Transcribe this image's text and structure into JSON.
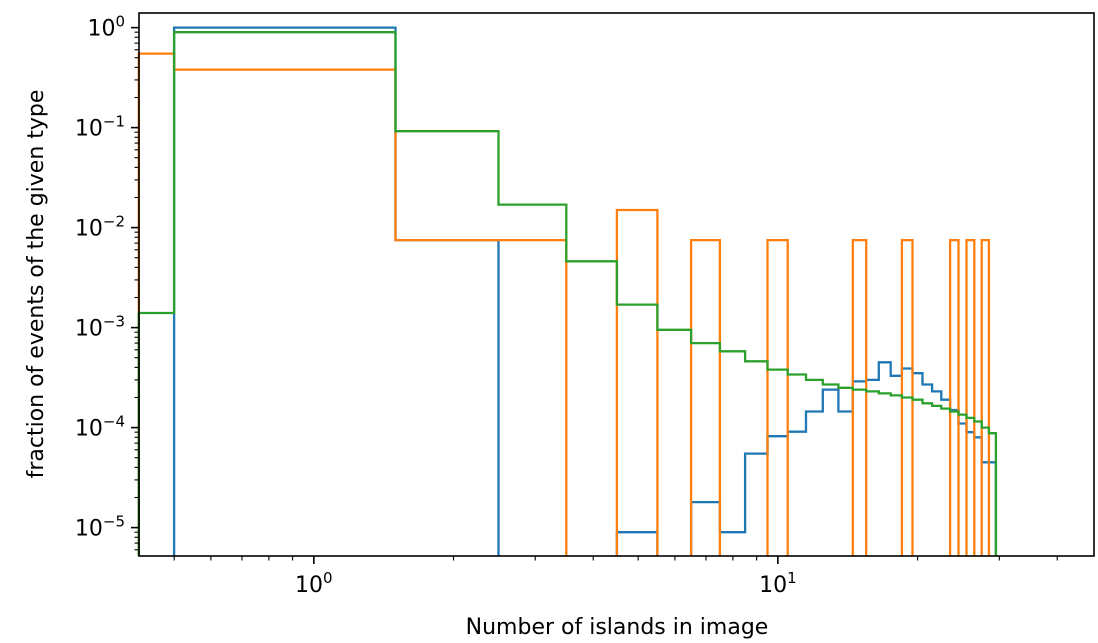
{
  "chart_data": {
    "type": "line",
    "title": "",
    "xlabel": "Number of islands in image",
    "ylabel": "fraction of events of the given type",
    "xscale": "log",
    "yscale": "log",
    "xlim": [
      0.42,
      48
    ],
    "ylim": [
      5.2e-06,
      1.4
    ],
    "grid": false,
    "legend": "none",
    "xticks": [
      {
        "value": 1,
        "base": "10",
        "exp": "0"
      },
      {
        "value": 10,
        "base": "10",
        "exp": "1"
      }
    ],
    "yticks": [
      {
        "value": 1,
        "base": "10",
        "exp": "0"
      },
      {
        "value": 0.1,
        "base": "10",
        "exp": "−1"
      },
      {
        "value": 0.01,
        "base": "10",
        "exp": "−2"
      },
      {
        "value": 0.001,
        "base": "10",
        "exp": "−3"
      },
      {
        "value": 0.0001,
        "base": "10",
        "exp": "−4"
      },
      {
        "value": 1e-05,
        "base": "10",
        "exp": "−5"
      }
    ],
    "series": [
      {
        "color": "#1f77b4",
        "edges": [
          0.5,
          1.5,
          2.5,
          3.5,
          4.5,
          5.5,
          6.5,
          7.5,
          8.5,
          9.5,
          10.5,
          11.5,
          12.5,
          13.5,
          14.5,
          15.5,
          16.5,
          17.5,
          18.5,
          19.5,
          20.5,
          21.5,
          22.5,
          23.5,
          24.5,
          25.5,
          26.5,
          27.5,
          28.5,
          29.5
        ],
        "values": [
          1.0,
          0.0075,
          null,
          null,
          9e-06,
          null,
          1.8e-05,
          9e-06,
          5.5e-05,
          8.2e-05,
          9.1e-05,
          0.000145,
          0.00024,
          0.000145,
          0.00029,
          0.0003,
          0.00045,
          0.00033,
          0.00039,
          0.00035,
          0.00027,
          0.00023,
          0.00019,
          0.00015,
          0.00011,
          9e-05,
          8e-05,
          4.5e-05,
          4.5e-05
        ]
      },
      {
        "color": "#ff7f0e",
        "edges": [
          0.0,
          0.5,
          1.5,
          2.5,
          3.5,
          4.5,
          5.5,
          6.5,
          7.5,
          8.5,
          9.5,
          10.5,
          11.5,
          12.5,
          13.5,
          14.5,
          15.5,
          16.5,
          17.5,
          18.5,
          19.5,
          20.5,
          21.5,
          22.5,
          23.5,
          24.5,
          25.5,
          26.5,
          27.5,
          28.5,
          29.5
        ],
        "values": [
          0.55,
          0.38,
          0.0075,
          0.0075,
          null,
          0.015,
          null,
          0.0075,
          null,
          null,
          0.0075,
          null,
          null,
          null,
          null,
          0.0075,
          null,
          null,
          null,
          0.0075,
          null,
          null,
          null,
          null,
          0.0075,
          null,
          0.0075,
          null,
          0.0075,
          null
        ]
      },
      {
        "color": "#2ca02c",
        "edges": [
          0.0,
          0.5,
          1.5,
          2.5,
          3.5,
          4.5,
          5.5,
          6.5,
          7.5,
          8.5,
          9.5,
          10.5,
          11.5,
          12.5,
          13.5,
          14.5,
          15.5,
          16.5,
          17.5,
          18.5,
          19.5,
          20.5,
          21.5,
          22.5,
          23.5,
          24.5,
          25.5,
          26.5,
          27.5,
          28.5,
          29.5
        ],
        "values": [
          0.0014,
          0.9,
          0.092,
          0.017,
          0.0046,
          0.0017,
          0.00095,
          0.0007,
          0.00058,
          0.00046,
          0.00038,
          0.00034,
          0.0003,
          0.00027,
          0.00025,
          0.00024,
          0.00023,
          0.00022,
          0.00021,
          0.0002,
          0.00019,
          0.000175,
          0.000165,
          0.000155,
          0.000145,
          0.000135,
          0.000125,
          0.000115,
          0.0001,
          8.8e-05
        ]
      }
    ]
  }
}
